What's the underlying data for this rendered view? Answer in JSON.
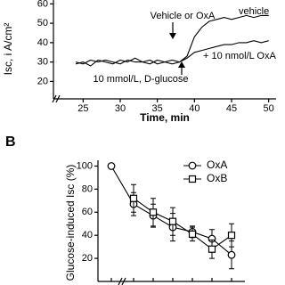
{
  "chart_data": [
    {
      "type": "line",
      "y_label": "Isc, i A/cm²",
      "x_label": "Time, min",
      "annotations": [
        "Vehicle or OxA",
        "10 mmol/L, D-glucose"
      ],
      "x": [
        24,
        25,
        26,
        27,
        28,
        29,
        30,
        31,
        32,
        33,
        34,
        35,
        36,
        37,
        38,
        39,
        40,
        41,
        42,
        43,
        44,
        45,
        46,
        47,
        48,
        49,
        50
      ],
      "xlim": [
        21,
        51
      ],
      "xticks": [
        25,
        30,
        35,
        40,
        45,
        50
      ],
      "ylim": [
        11,
        62
      ],
      "yticks": [
        20,
        30,
        40,
        50,
        60
      ],
      "series": [
        {
          "name": "vehicle",
          "color": "#000000",
          "values": [
            29,
            30,
            28,
            31,
            30,
            29,
            31,
            30,
            32,
            30,
            31,
            29,
            30,
            31,
            30,
            33,
            43,
            48,
            51,
            52,
            53,
            52,
            53,
            54,
            53,
            54,
            54
          ]
        },
        {
          "name": "+ 10 nmol/L OxA",
          "color": "#000000",
          "values": [
            30,
            29,
            31,
            30,
            31,
            30,
            29,
            31,
            30,
            30,
            29,
            31,
            30,
            29,
            30,
            32,
            35,
            36,
            37,
            38,
            39,
            39,
            40,
            40,
            41,
            40,
            41
          ]
        }
      ]
    },
    {
      "type": "line",
      "panel_label": "B",
      "y_label": "Glucose-induced Isc (%)",
      "categories": [
        null,
        null,
        null,
        null,
        null,
        null,
        null
      ],
      "ylim": [
        0,
        105
      ],
      "yticks": [
        20,
        40,
        60,
        80,
        100
      ],
      "legend": "upper right",
      "series": [
        {
          "name": "OxA",
          "marker": "circle",
          "color": "#000000",
          "values": [
            100,
            67,
            57,
            47,
            43,
            37,
            23
          ],
          "errors": [
            null,
            10,
            10,
            12,
            5,
            8,
            12
          ]
        },
        {
          "name": "OxB",
          "marker": "square",
          "color": "#000000",
          "values": [
            null,
            72,
            60,
            52,
            41,
            28,
            40
          ],
          "errors": [
            null,
            12,
            12,
            12,
            6,
            8,
            10
          ]
        }
      ]
    }
  ]
}
